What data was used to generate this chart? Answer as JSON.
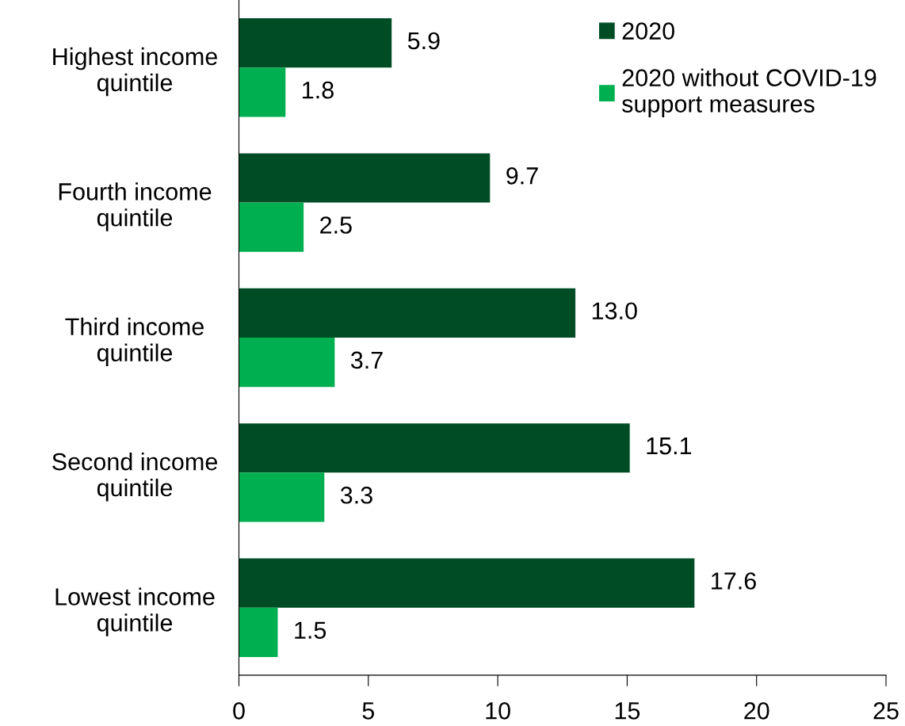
{
  "chart_data": {
    "type": "bar",
    "orientation": "horizontal",
    "categories": [
      "Highest income\nquintile",
      "Fourth income\nquintile",
      "Third income\nquintile",
      "Second income\nquintile",
      "Lowest income\nquintile"
    ],
    "series": [
      {
        "name": "2020",
        "color": "#004d25",
        "values": [
          5.9,
          9.7,
          13.0,
          15.1,
          17.6
        ]
      },
      {
        "name": "2020 without COVID-19\nsupport measures",
        "color": "#00b050",
        "values": [
          1.8,
          2.5,
          3.7,
          3.3,
          1.5
        ]
      }
    ],
    "value_labels": [
      [
        "5.9",
        "9.7",
        "13.0",
        "15.1",
        "17.6"
      ],
      [
        "1.8",
        "2.5",
        "3.7",
        "3.3",
        "1.5"
      ]
    ],
    "xlim": [
      0,
      25
    ],
    "xticks": [
      0,
      5,
      10,
      15,
      20,
      25
    ],
    "grid": false,
    "legend": "top right"
  }
}
